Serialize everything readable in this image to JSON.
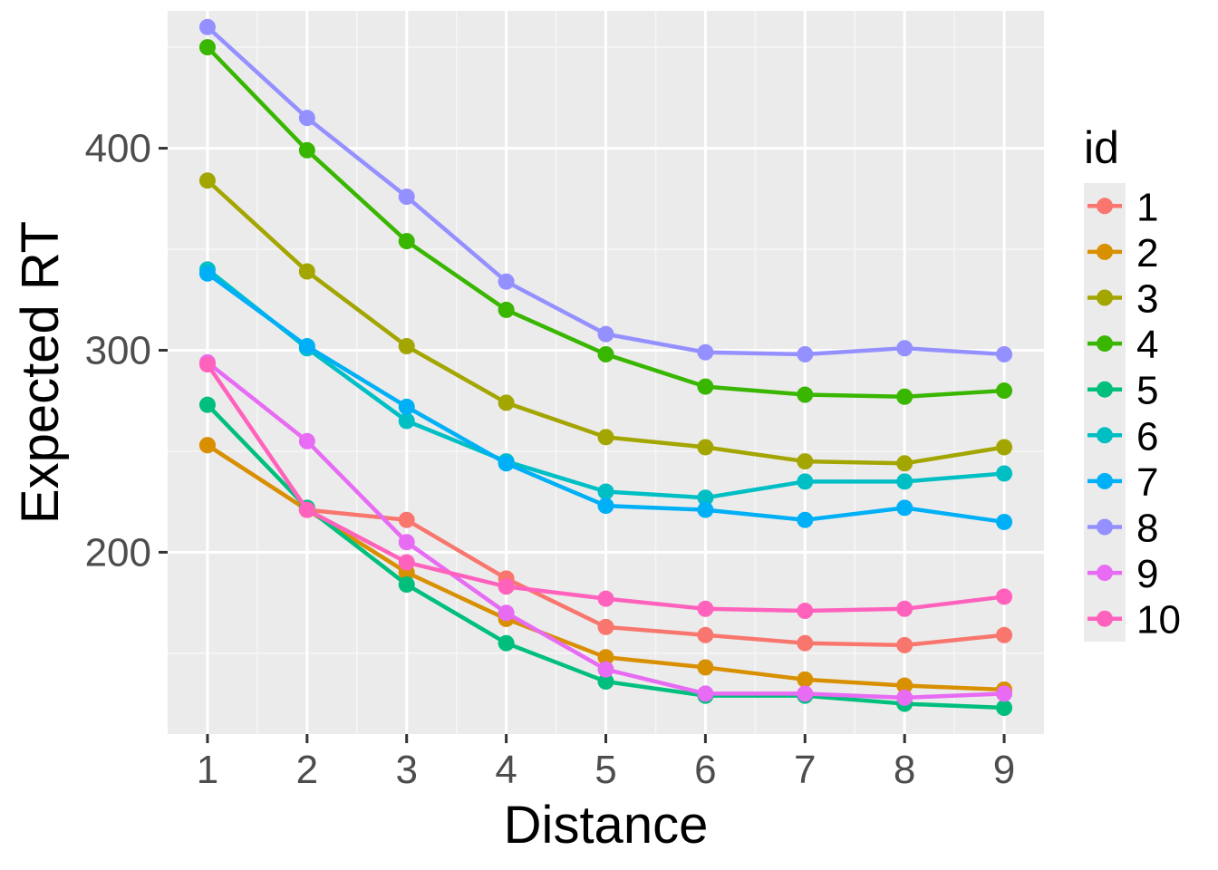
{
  "chart_data": {
    "type": "line",
    "xlabel": "Distance",
    "ylabel": "Expected RT",
    "x": [
      1,
      2,
      3,
      4,
      5,
      6,
      7,
      8,
      9
    ],
    "xlim": [
      0.6,
      9.4
    ],
    "ylim": [
      110,
      468
    ],
    "xticks": [
      "1",
      "2",
      "3",
      "4",
      "5",
      "6",
      "7",
      "8",
      "9"
    ],
    "yticks": [
      {
        "value": 200,
        "label": "200"
      },
      {
        "value": 300,
        "label": "300"
      },
      {
        "value": 400,
        "label": "400"
      }
    ],
    "grid": true,
    "legend": {
      "title": "id",
      "position": "right"
    },
    "series": [
      {
        "name": "1",
        "color": "#F8766D",
        "values": [
          253,
          221,
          216,
          187,
          163,
          159,
          155,
          154,
          159
        ]
      },
      {
        "name": "2",
        "color": "#D89000",
        "values": [
          253,
          221,
          190,
          167,
          148,
          143,
          137,
          134,
          132
        ]
      },
      {
        "name": "3",
        "color": "#A3A500",
        "values": [
          384,
          339,
          302,
          274,
          257,
          252,
          245,
          244,
          252
        ]
      },
      {
        "name": "4",
        "color": "#39B600",
        "values": [
          450,
          399,
          354,
          320,
          298,
          282,
          278,
          277,
          280
        ]
      },
      {
        "name": "5",
        "color": "#00BF7D",
        "values": [
          273,
          222,
          184,
          155,
          136,
          129,
          129,
          125,
          123
        ]
      },
      {
        "name": "6",
        "color": "#00BFC4",
        "values": [
          340,
          301,
          265,
          245,
          230,
          227,
          235,
          235,
          239
        ]
      },
      {
        "name": "7",
        "color": "#00B0F6",
        "values": [
          338,
          302,
          272,
          244,
          223,
          221,
          216,
          222,
          215
        ]
      },
      {
        "name": "8",
        "color": "#9590FF",
        "values": [
          460,
          415,
          376,
          334,
          308,
          299,
          298,
          301,
          298
        ]
      },
      {
        "name": "9",
        "color": "#E76BF3",
        "values": [
          294,
          255,
          205,
          170,
          142,
          130,
          130,
          128,
          130
        ]
      },
      {
        "name": "10",
        "color": "#FF62BC",
        "values": [
          293,
          221,
          195,
          183,
          177,
          172,
          171,
          172,
          178
        ]
      }
    ]
  }
}
